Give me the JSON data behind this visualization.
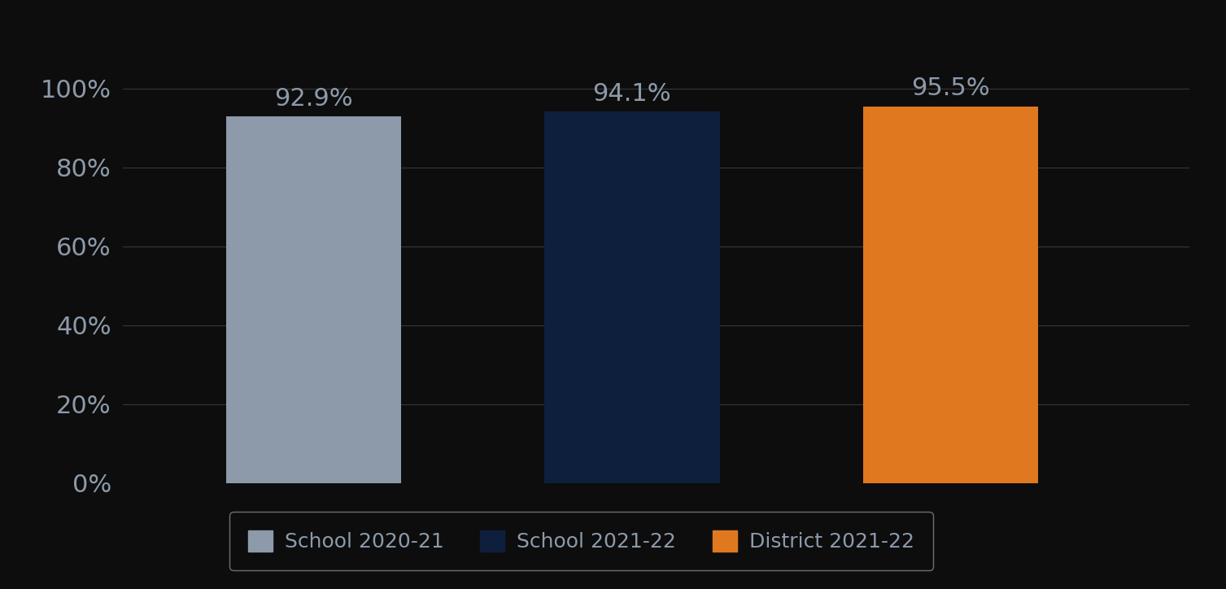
{
  "categories": [
    "School 2020-21",
    "School 2021-22",
    "District 2021-22"
  ],
  "values": [
    0.929,
    0.941,
    0.955
  ],
  "labels": [
    "92.9%",
    "94.1%",
    "95.5%"
  ],
  "bar_colors": [
    "#8c9aaa",
    "#0d1f3c",
    "#e07820"
  ],
  "background_color": "#0d0d0d",
  "text_color": "#8c9aaa",
  "label_color": "#8c9aaa",
  "ytick_labels": [
    "0%",
    "20%",
    "40%",
    "60%",
    "80%",
    "100%"
  ],
  "ytick_values": [
    0,
    0.2,
    0.4,
    0.6,
    0.8,
    1.0
  ],
  "ylim": [
    0,
    1.12
  ],
  "grid_color": "#555555",
  "legend_labels": [
    "School 2020-21",
    "School 2021-22",
    "District 2021-22"
  ],
  "bar_width": 0.55,
  "label_fontsize": 22,
  "tick_fontsize": 22,
  "legend_fontsize": 18,
  "legend_edge_color": "#888888"
}
